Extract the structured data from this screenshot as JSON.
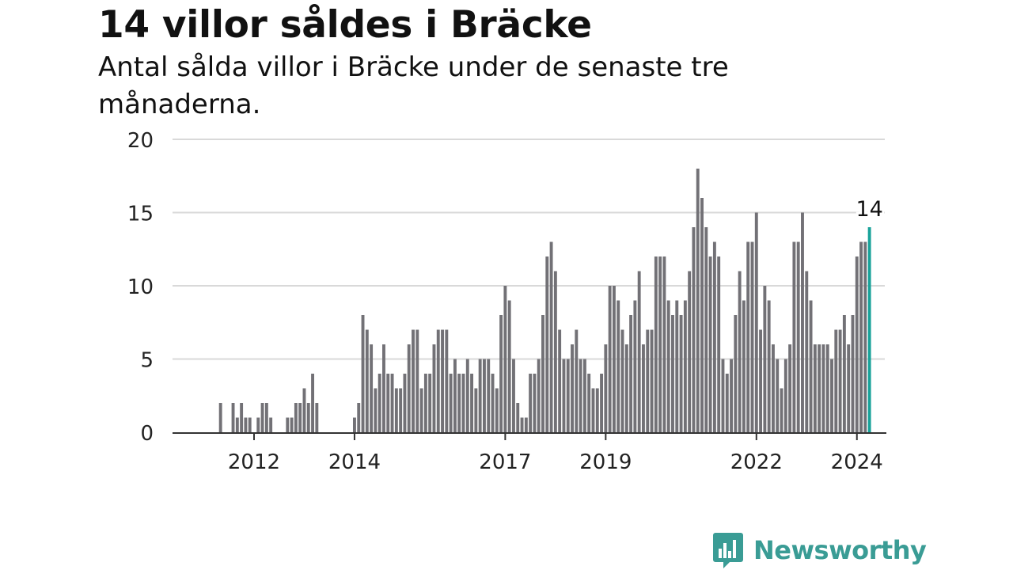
{
  "header": {
    "title": "14 villor såldes i Bräcke",
    "subtitle": "Antal sålda villor i Bräcke under de senaste tre månaderna."
  },
  "brand": {
    "name": "Newsworthy",
    "color": "#3a9c95"
  },
  "colors": {
    "bar": "#727176",
    "highlight": "#19a39a",
    "grid": "#d9d9d9",
    "axis": "#333333"
  },
  "chart_data": {
    "type": "bar",
    "title": "14 villor såldes i Bräcke",
    "xlabel": "",
    "ylabel": "",
    "ylim": [
      0,
      20
    ],
    "yticks": [
      0,
      5,
      10,
      15,
      20
    ],
    "grid": true,
    "x_tick_labels": [
      "2012",
      "2014",
      "2017",
      "2019",
      "2022",
      "2024"
    ],
    "x_tick_index": [
      16,
      40,
      76,
      100,
      136,
      160
    ],
    "start_month": "2009-04",
    "values": [
      0,
      0,
      0,
      0,
      0,
      0,
      0,
      0,
      2,
      0,
      0,
      2,
      1,
      2,
      1,
      1,
      0,
      1,
      2,
      2,
      1,
      0,
      0,
      0,
      1,
      1,
      2,
      2,
      3,
      2,
      4,
      2,
      0,
      0,
      0,
      0,
      0,
      0,
      0,
      0,
      1,
      2,
      8,
      7,
      6,
      3,
      4,
      6,
      4,
      4,
      3,
      3,
      4,
      6,
      7,
      7,
      3,
      4,
      4,
      6,
      7,
      7,
      7,
      4,
      5,
      4,
      4,
      5,
      4,
      3,
      5,
      5,
      5,
      4,
      3,
      8,
      10,
      9,
      5,
      2,
      1,
      1,
      4,
      4,
      5,
      8,
      12,
      13,
      11,
      7,
      5,
      5,
      6,
      7,
      5,
      5,
      4,
      3,
      3,
      4,
      6,
      10,
      10,
      9,
      7,
      6,
      8,
      9,
      11,
      6,
      7,
      7,
      12,
      12,
      12,
      9,
      8,
      9,
      8,
      9,
      11,
      14,
      18,
      16,
      14,
      12,
      13,
      12,
      5,
      4,
      5,
      8,
      11,
      9,
      13,
      13,
      15,
      7,
      10,
      9,
      6,
      5,
      3,
      5,
      6,
      13,
      13,
      15,
      11,
      9,
      6,
      6,
      6,
      6,
      5,
      7,
      7,
      8,
      6,
      8,
      12,
      13,
      13,
      14
    ],
    "highlight_label": "14"
  }
}
